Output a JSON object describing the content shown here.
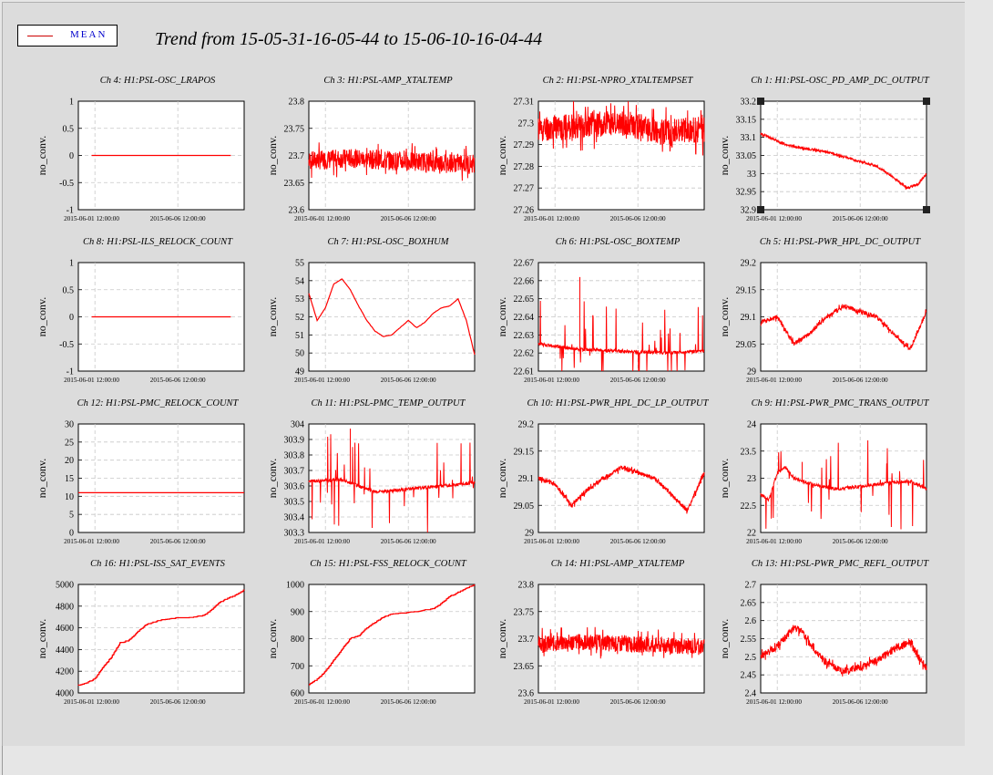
{
  "title": "Trend from 15-05-31-16-05-44 to 15-06-10-16-04-44",
  "legend": {
    "label": "MEAN",
    "color": "#cc0000"
  },
  "colors": {
    "trace": "#ff0000",
    "grid": "#c8c8c8",
    "panel": "#ffffff"
  },
  "chart_data": [
    {
      "type": "line",
      "title": "Ch 4: H1:PSL-OSC_LRAPOS",
      "ylabel": "no_conv.",
      "yticks": [
        "1",
        "0.5",
        "0",
        "-0.5",
        "-1"
      ],
      "ylim": [
        -1,
        1
      ],
      "xticks": [
        "2015-06-01 12:00:00",
        "2015-06-06 12:00:00"
      ],
      "series": [
        {
          "x": [
            0.25,
            10.25
          ],
          "values": [
            0,
            0
          ],
          "start_frac": 0.08,
          "end_frac": 0.92
        }
      ],
      "style": "flat"
    },
    {
      "type": "line",
      "title": "Ch 8: H1:PSL-ILS_RELOCK_COUNT",
      "ylabel": "no_conv.",
      "yticks": [
        "1",
        "0.5",
        "0",
        "-0.5",
        "-1"
      ],
      "ylim": [
        -1,
        1
      ],
      "xticks": [
        "2015-06-01 12:00:00",
        "2015-06-06 12:00:00"
      ],
      "series": [
        {
          "x": [
            0.25,
            10.25
          ],
          "values": [
            0,
            0
          ],
          "start_frac": 0.08,
          "end_frac": 0.92
        }
      ],
      "style": "flat"
    },
    {
      "type": "line",
      "title": "Ch 12: H1:PSL-PMC_RELOCK_COUNT",
      "ylabel": "no_conv.",
      "yticks": [
        "30",
        "25",
        "20",
        "15",
        "10",
        "5",
        "0"
      ],
      "ylim": [
        0,
        30
      ],
      "xticks": [
        "2015-06-01 12:00:00",
        "2015-06-06 12:00:00"
      ],
      "series": [
        {
          "x": [
            0,
            1
          ],
          "values": [
            11,
            11
          ],
          "start_frac": 0,
          "end_frac": 1
        }
      ],
      "style": "flat"
    },
    {
      "type": "line",
      "title": "Ch 16: H1:PSL-ISS_SAT_EVENTS",
      "ylabel": "no_conv.",
      "yticks": [
        "5000",
        "4800",
        "4600",
        "4400",
        "4200",
        "4000"
      ],
      "ylim": [
        4000,
        5000
      ],
      "xticks": [
        "2015-06-01 12:00:00",
        "2015-06-06 12:00:00"
      ],
      "series": [
        {
          "x": [
            0,
            0.05,
            0.1,
            0.15,
            0.2,
            0.25,
            0.3,
            0.35,
            0.4,
            0.45,
            0.5,
            0.55,
            0.6,
            0.65,
            0.7,
            0.75,
            0.8,
            0.85,
            0.9,
            0.95,
            1
          ],
          "values": [
            4070,
            4090,
            4130,
            4240,
            4330,
            4460,
            4480,
            4550,
            4620,
            4650,
            4670,
            4680,
            4690,
            4690,
            4700,
            4710,
            4760,
            4830,
            4870,
            4900,
            4950
          ]
        }
      ],
      "style": "step"
    },
    {
      "type": "line",
      "title": "Ch 3: H1:PSL-AMP_XTALTEMP",
      "ylabel": "no_conv.",
      "yticks": [
        "23.8",
        "23.75",
        "23.7",
        "23.65",
        "23.6"
      ],
      "ylim": [
        23.6,
        23.8
      ],
      "xticks": [
        "2015-06-01 12:00:00",
        "2015-06-06 12:00:00"
      ],
      "series": [
        {
          "x": [
            0,
            0.25,
            0.5,
            0.75,
            1
          ],
          "values": [
            23.69,
            23.695,
            23.69,
            23.688,
            23.685
          ]
        }
      ],
      "style": "noise",
      "noise": 0.035
    },
    {
      "type": "line",
      "title": "Ch 7: H1:PSL-OSC_BOXHUM",
      "ylabel": "no_conv.",
      "yticks": [
        "55",
        "54",
        "53",
        "52",
        "51",
        "50",
        "49"
      ],
      "ylim": [
        49,
        55
      ],
      "xticks": [
        "2015-06-01 12:00:00",
        "2015-06-06 12:00:00"
      ],
      "series": [
        {
          "x": [
            0,
            0.05,
            0.1,
            0.15,
            0.2,
            0.25,
            0.3,
            0.35,
            0.4,
            0.45,
            0.5,
            0.55,
            0.6,
            0.65,
            0.7,
            0.75,
            0.8,
            0.85,
            0.9,
            0.95,
            1
          ],
          "values": [
            53.3,
            51.8,
            52.5,
            53.8,
            54.1,
            53.5,
            52.6,
            51.8,
            51.2,
            50.9,
            51.0,
            51.4,
            51.8,
            51.4,
            51.7,
            52.2,
            52.5,
            52.6,
            53.0,
            51.8,
            49.9
          ]
        }
      ],
      "style": "smooth"
    },
    {
      "type": "line",
      "title": "Ch 11: H1:PSL-PMC_TEMP_OUTPUT",
      "ylabel": "no_conv.",
      "yticks": [
        "304",
        "303.9",
        "303.8",
        "303.7",
        "303.6",
        "303.5",
        "303.4",
        "303.3"
      ],
      "ylim": [
        303.3,
        304
      ],
      "xticks": [
        "2015-06-01 12:00:00",
        "2015-06-06 12:00:00"
      ],
      "series": [
        {
          "x": [
            0,
            0.2,
            0.4,
            0.6,
            0.8,
            1
          ],
          "values": [
            303.63,
            303.64,
            303.56,
            303.58,
            303.6,
            303.62
          ]
        }
      ],
      "style": "spikes",
      "spike_peak": 303.97
    },
    {
      "type": "line",
      "title": "Ch 15: H1:PSL-FSS_RELOCK_COUNT",
      "ylabel": "no_conv.",
      "yticks": [
        "1000",
        "900",
        "800",
        "700",
        "600"
      ],
      "ylim": [
        600,
        1000
      ],
      "xticks": [
        "2015-06-01 12:00:00",
        "2015-06-06 12:00:00"
      ],
      "series": [
        {
          "x": [
            0,
            0.05,
            0.1,
            0.15,
            0.2,
            0.25,
            0.3,
            0.35,
            0.4,
            0.45,
            0.5,
            0.55,
            0.6,
            0.65,
            0.7,
            0.75,
            0.8,
            0.85,
            0.9,
            0.95,
            1
          ],
          "values": [
            630,
            650,
            680,
            720,
            760,
            800,
            810,
            840,
            860,
            880,
            890,
            893,
            896,
            900,
            905,
            910,
            930,
            955,
            970,
            985,
            1000
          ]
        }
      ],
      "style": "step"
    },
    {
      "type": "line",
      "title": "Ch 2: H1:PSL-NPRO_XTALTEMPSET",
      "ylabel": "no_conv.",
      "yticks": [
        "27.31",
        "27.3",
        "27.29",
        "27.28",
        "27.27",
        "27.26"
      ],
      "ylim": [
        27.26,
        27.31
      ],
      "xticks": [
        "2015-06-01 12:00:00",
        "2015-06-06 12:00:00"
      ],
      "series": [
        {
          "x": [
            0,
            0.25,
            0.5,
            0.75,
            1
          ],
          "values": [
            27.297,
            27.299,
            27.3,
            27.296,
            27.297
          ]
        }
      ],
      "style": "noise",
      "noise": 0.012
    },
    {
      "type": "line",
      "title": "Ch 6: H1:PSL-OSC_BOXTEMP",
      "ylabel": "no_conv.",
      "yticks": [
        "22.67",
        "22.66",
        "22.65",
        "22.64",
        "22.63",
        "22.62",
        "22.61"
      ],
      "ylim": [
        22.61,
        22.67
      ],
      "xticks": [
        "2015-06-01 12:00:00",
        "2015-06-06 12:00:00"
      ],
      "series": [
        {
          "x": [
            0,
            0.25,
            0.5,
            0.75,
            1
          ],
          "values": [
            22.625,
            22.622,
            22.621,
            22.62,
            22.621
          ]
        }
      ],
      "style": "spikes",
      "spike_peak": 22.662
    },
    {
      "type": "line",
      "title": "Ch 10: H1:PSL-PWR_HPL_DC_LP_OUTPUT",
      "ylabel": "no_conv.",
      "yticks": [
        "29.2",
        "29.15",
        "29.1",
        "29.05",
        "29"
      ],
      "ylim": [
        29,
        29.2
      ],
      "xticks": [
        "2015-06-01 12:00:00",
        "2015-06-06 12:00:00"
      ],
      "series": [
        {
          "x": [
            0,
            0.1,
            0.2,
            0.3,
            0.4,
            0.5,
            0.6,
            0.7,
            0.8,
            0.9,
            1
          ],
          "values": [
            29.1,
            29.09,
            29.05,
            29.08,
            29.1,
            29.12,
            29.11,
            29.1,
            29.07,
            29.04,
            29.11
          ]
        }
      ],
      "style": "noise",
      "noise": 0.008
    },
    {
      "type": "line",
      "title": "Ch 14: H1:PSL-AMP_XTALTEMP",
      "ylabel": "no_conv.",
      "yticks": [
        "23.8",
        "23.75",
        "23.7",
        "23.65",
        "23.6"
      ],
      "ylim": [
        23.6,
        23.8
      ],
      "xticks": [
        "2015-06-01 12:00:00",
        "2015-06-06 12:00:00"
      ],
      "series": [
        {
          "x": [
            0,
            0.25,
            0.5,
            0.75,
            1
          ],
          "values": [
            23.69,
            23.695,
            23.69,
            23.688,
            23.685
          ]
        }
      ],
      "style": "noise",
      "noise": 0.03
    },
    {
      "type": "line",
      "title": "Ch 1: H1:PSL-OSC_PD_AMP_DC_OUTPUT",
      "ylabel": "no_conv.",
      "yticks": [
        "33.2",
        "33.15",
        "33.1",
        "33.05",
        "33",
        "32.95",
        "32.9"
      ],
      "ylim": [
        32.9,
        33.2
      ],
      "xticks": [
        "2015-06-01 12:00:00",
        "2015-06-06 12:00:00"
      ],
      "series": [
        {
          "x": [
            0,
            0.05,
            0.15,
            0.25,
            0.4,
            0.55,
            0.7,
            0.8,
            0.88,
            0.95,
            1
          ],
          "values": [
            33.11,
            33.1,
            33.08,
            33.07,
            33.06,
            33.04,
            33.02,
            32.99,
            32.96,
            32.97,
            33.0
          ]
        }
      ],
      "style": "noise",
      "noise": 0.006,
      "selected": true
    },
    {
      "type": "line",
      "title": "Ch 5: H1:PSL-PWR_HPL_DC_OUTPUT",
      "ylabel": "no_conv.",
      "yticks": [
        "29.2",
        "29.15",
        "29.1",
        "29.05",
        "29"
      ],
      "ylim": [
        29,
        29.2
      ],
      "xticks": [
        "2015-06-01 12:00:00",
        "2015-06-06 12:00:00"
      ],
      "series": [
        {
          "x": [
            0,
            0.1,
            0.2,
            0.3,
            0.4,
            0.5,
            0.6,
            0.7,
            0.8,
            0.9,
            1
          ],
          "values": [
            29.09,
            29.1,
            29.05,
            29.07,
            29.1,
            29.12,
            29.11,
            29.1,
            29.07,
            29.04,
            29.11
          ]
        }
      ],
      "style": "noise",
      "noise": 0.008
    },
    {
      "type": "line",
      "title": "Ch 9: H1:PSL-PWR_PMC_TRANS_OUTPUT",
      "ylabel": "no_conv.",
      "yticks": [
        "24",
        "23.5",
        "23",
        "22.5",
        "22"
      ],
      "ylim": [
        22,
        24
      ],
      "xticks": [
        "2015-06-01 12:00:00",
        "2015-06-06 12:00:00"
      ],
      "series": [
        {
          "x": [
            0,
            0.05,
            0.1,
            0.15,
            0.2,
            0.3,
            0.45,
            0.6,
            0.75,
            0.9,
            1
          ],
          "values": [
            22.7,
            22.6,
            23.1,
            23.2,
            23.0,
            22.9,
            22.8,
            22.85,
            22.9,
            22.95,
            22.8
          ]
        }
      ],
      "style": "spikes",
      "spike_peak": 23.3
    },
    {
      "type": "line",
      "title": "Ch 13: H1:PSL-PWR_PMC_REFL_OUTPUT",
      "ylabel": "no_conv.",
      "yticks": [
        "2.7",
        "2.65",
        "2.6",
        "2.55",
        "2.5",
        "2.45",
        "2.4"
      ],
      "ylim": [
        2.4,
        2.7
      ],
      "xticks": [
        "2015-06-01 12:00:00",
        "2015-06-06 12:00:00"
      ],
      "series": [
        {
          "x": [
            0,
            0.1,
            0.2,
            0.25,
            0.3,
            0.4,
            0.5,
            0.6,
            0.7,
            0.8,
            0.9,
            0.95,
            1
          ],
          "values": [
            2.5,
            2.53,
            2.58,
            2.57,
            2.53,
            2.48,
            2.46,
            2.47,
            2.49,
            2.52,
            2.54,
            2.5,
            2.47
          ]
        }
      ],
      "style": "noise",
      "noise": 0.02
    }
  ]
}
